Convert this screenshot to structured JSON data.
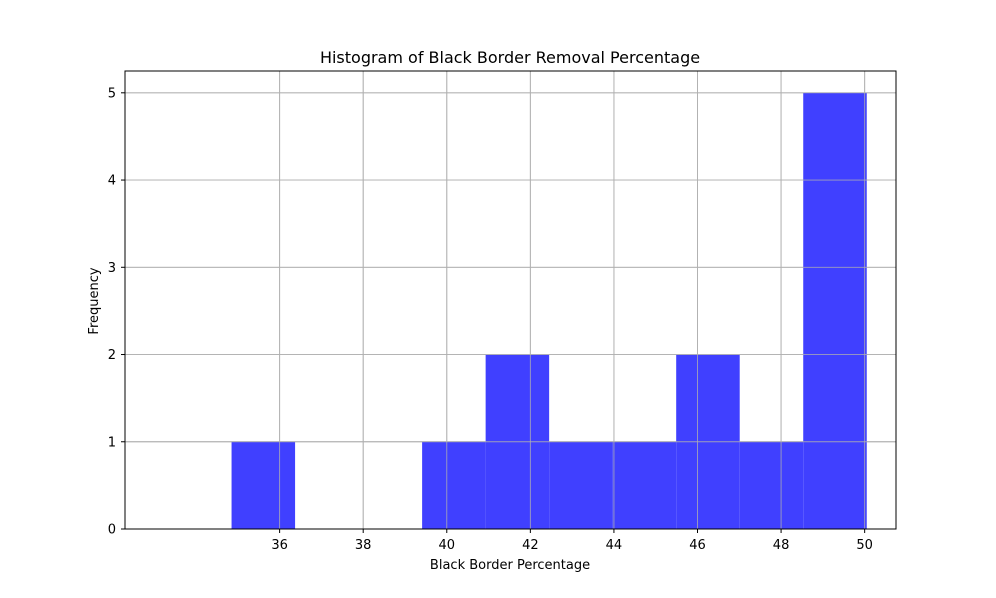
{
  "chart_data": {
    "type": "bar",
    "title": "Histogram of Black Border Removal Percentage",
    "xlabel": "Black Border Percentage",
    "ylabel": "Frequency",
    "xlim": [
      32.3,
      50.75
    ],
    "ylim": [
      0,
      5.25
    ],
    "xticks": [
      36,
      38,
      40,
      42,
      44,
      46,
      48,
      50
    ],
    "yticks": [
      0,
      1,
      2,
      3,
      4,
      5
    ],
    "grid": true,
    "bar_color": "#4040ff",
    "bins": [
      {
        "start": 34.85,
        "end": 36.37,
        "count": 1
      },
      {
        "start": 36.37,
        "end": 37.89,
        "count": 0
      },
      {
        "start": 37.89,
        "end": 39.41,
        "count": 0
      },
      {
        "start": 39.41,
        "end": 40.93,
        "count": 1
      },
      {
        "start": 40.93,
        "end": 42.45,
        "count": 2
      },
      {
        "start": 42.45,
        "end": 43.97,
        "count": 1
      },
      {
        "start": 43.97,
        "end": 45.49,
        "count": 1
      },
      {
        "start": 45.49,
        "end": 47.01,
        "count": 2
      },
      {
        "start": 47.01,
        "end": 48.53,
        "count": 1
      },
      {
        "start": 48.53,
        "end": 50.05,
        "count": 5
      }
    ]
  }
}
